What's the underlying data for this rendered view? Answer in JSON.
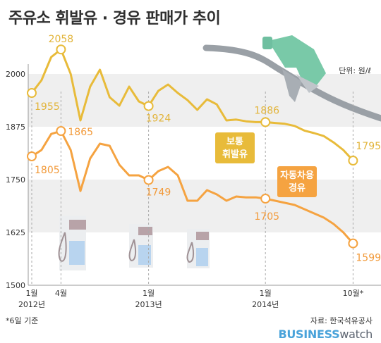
{
  "title": "주유소 휘발유 · 경유 판매가 추이",
  "unit": "단위: 원/ℓ",
  "footnote": "*6일 기준",
  "source": "자료: 한국석유공사",
  "brand": {
    "part1": "BUSINESS",
    "part2": "watch"
  },
  "colors": {
    "gasoline": "#e8bb3a",
    "diesel": "#f5a341",
    "band": "#efefef"
  },
  "chart_data": {
    "type": "line",
    "ylim": [
      1500,
      2090
    ],
    "yticks": [
      1500,
      1625,
      1750,
      1875,
      2000
    ],
    "x_ticks": [
      {
        "x": 0,
        "label": "1월",
        "sub": "2012년"
      },
      {
        "x": 3,
        "label": "4월",
        "sub": ""
      },
      {
        "x": 12,
        "label": "1월",
        "sub": "2013년"
      },
      {
        "x": 24,
        "label": "1월",
        "sub": "2014년"
      },
      {
        "x": 33,
        "label": "10월*",
        "sub": ""
      }
    ],
    "series": [
      {
        "name": "보통 휘발유",
        "key": "gasoline",
        "label_lines": [
          "보통",
          "휘발유"
        ],
        "x": [
          0,
          1,
          2,
          3,
          4,
          5,
          6,
          7,
          8,
          9,
          10,
          11,
          12,
          13,
          14,
          15,
          16,
          17,
          18,
          19,
          20,
          21,
          22,
          23,
          24,
          25,
          26,
          27,
          28,
          29,
          30,
          31,
          32,
          33
        ],
        "values": [
          1955,
          1985,
          2040,
          2058,
          2000,
          1890,
          1970,
          2010,
          1945,
          1925,
          1970,
          1935,
          1924,
          1960,
          1975,
          1955,
          1938,
          1915,
          1940,
          1928,
          1890,
          1892,
          1888,
          1886,
          1886,
          1884,
          1882,
          1877,
          1866,
          1860,
          1853,
          1838,
          1820,
          1795
        ],
        "annotations": [
          {
            "x": 0,
            "value": 1955,
            "text": "1955"
          },
          {
            "x": 3,
            "value": 2058,
            "text": "2058"
          },
          {
            "x": 12,
            "value": 1924,
            "text": "1924"
          },
          {
            "x": 24,
            "value": 1886,
            "text": "1886"
          },
          {
            "x": 33,
            "value": 1795,
            "text": "1795"
          }
        ]
      },
      {
        "name": "자동차용 경유",
        "key": "diesel",
        "label_lines": [
          "자동차용",
          "경유"
        ],
        "x": [
          0,
          1,
          2,
          3,
          4,
          5,
          6,
          7,
          8,
          9,
          10,
          11,
          12,
          13,
          14,
          15,
          16,
          17,
          18,
          19,
          20,
          21,
          22,
          23,
          24,
          25,
          26,
          27,
          28,
          29,
          30,
          31,
          32,
          33
        ],
        "values": [
          1805,
          1820,
          1858,
          1865,
          1820,
          1723,
          1800,
          1835,
          1830,
          1785,
          1760,
          1760,
          1749,
          1770,
          1780,
          1760,
          1700,
          1700,
          1725,
          1715,
          1700,
          1710,
          1708,
          1708,
          1705,
          1700,
          1695,
          1690,
          1680,
          1670,
          1660,
          1645,
          1625,
          1599
        ],
        "annotations": [
          {
            "x": 0,
            "value": 1805,
            "text": "1805"
          },
          {
            "x": 3,
            "value": 1865,
            "text": "1865"
          },
          {
            "x": 12,
            "value": 1749,
            "text": "1749"
          },
          {
            "x": 24,
            "value": 1705,
            "text": "1705"
          },
          {
            "x": 33,
            "value": 1599,
            "text": "1599"
          }
        ]
      }
    ]
  }
}
